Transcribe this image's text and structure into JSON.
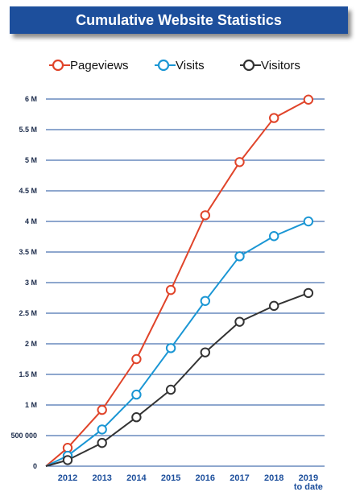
{
  "chart_data": {
    "type": "line",
    "title": "Cumulative Website Statistics",
    "categories": [
      "2012",
      "2013",
      "2014",
      "2015",
      "2016",
      "2017",
      "2018",
      "2019\nto date"
    ],
    "origin": {
      "label": "0",
      "value": 0
    },
    "yticks": [
      {
        "value": 0,
        "label": "0"
      },
      {
        "value": 500000,
        "label": "500 000"
      },
      {
        "value": 1000000,
        "label": "1 M"
      },
      {
        "value": 1500000,
        "label": "1.5 M"
      },
      {
        "value": 2000000,
        "label": "2 M"
      },
      {
        "value": 2500000,
        "label": "2.5 M"
      },
      {
        "value": 3000000,
        "label": "3 M"
      },
      {
        "value": 3500000,
        "label": "3.5 M"
      },
      {
        "value": 4000000,
        "label": "4 M"
      },
      {
        "value": 4500000,
        "label": "4.5 M"
      },
      {
        "value": 5000000,
        "label": "5 M"
      },
      {
        "value": 5500000,
        "label": "5.5 M"
      },
      {
        "value": 6000000,
        "label": "6 M"
      }
    ],
    "ylim": [
      0,
      6000000
    ],
    "grid": true,
    "legend_position": "top",
    "series": [
      {
        "name": "Pageviews",
        "color": "#e0442a",
        "values": [
          300000,
          920000,
          1750000,
          2880000,
          4100000,
          4970000,
          5690000,
          5990000
        ]
      },
      {
        "name": "Visits",
        "color": "#1a96d4",
        "values": [
          170000,
          600000,
          1170000,
          1930000,
          2700000,
          3430000,
          3760000,
          4000000
        ]
      },
      {
        "name": "Visitors",
        "color": "#333333",
        "values": [
          100000,
          380000,
          800000,
          1250000,
          1860000,
          2360000,
          2620000,
          2830000
        ]
      }
    ]
  },
  "colors": {
    "title_bg": "#1d4f9c",
    "grid": "#1d4f9c",
    "x_labels": "#1d4f9c"
  }
}
